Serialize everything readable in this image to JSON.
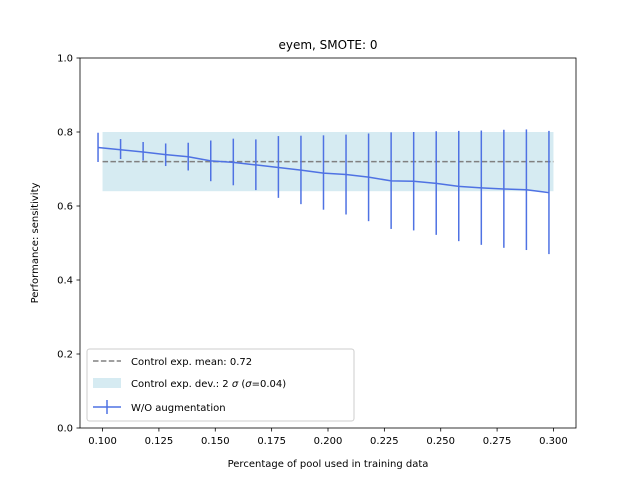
{
  "chart_data": {
    "type": "line",
    "title": "eyem, SMOTE: 0",
    "xlabel": "Percentage of pool used in training data",
    "ylabel": "Performance: sensitivity",
    "xlim": [
      0.09,
      0.31
    ],
    "ylim": [
      0.0,
      1.0
    ],
    "xticks": [
      0.1,
      0.125,
      0.15,
      0.175,
      0.2,
      0.225,
      0.25,
      0.275,
      0.3
    ],
    "xtick_labels": [
      "0.100",
      "0.125",
      "0.150",
      "0.175",
      "0.200",
      "0.225",
      "0.250",
      "0.275",
      "0.300"
    ],
    "yticks": [
      0.0,
      0.2,
      0.4,
      0.6,
      0.8,
      1.0
    ],
    "ytick_labels": [
      "0.0",
      "0.2",
      "0.4",
      "0.6",
      "0.8",
      "1.0"
    ],
    "grid": false,
    "legend_position": "lower-left",
    "control": {
      "mean": 0.72,
      "band": [
        0.64,
        0.8
      ],
      "x_range": [
        0.1,
        0.3
      ],
      "mean_label": "Control exp. mean: 0.72",
      "band_label": "Control exp. dev.: 2 σ (σ=0.04)",
      "band_label_parts": [
        "Control exp. dev.: 2 ",
        "σ",
        " (",
        "σ",
        "=0.04)"
      ]
    },
    "series": [
      {
        "name": "W/O augmentation",
        "color": "#4f72e3",
        "x": [
          0.098,
          0.108,
          0.118,
          0.128,
          0.138,
          0.148,
          0.158,
          0.168,
          0.178,
          0.188,
          0.198,
          0.208,
          0.218,
          0.228,
          0.238,
          0.248,
          0.258,
          0.268,
          0.278,
          0.288,
          0.298
        ],
        "y": [
          0.758,
          0.752,
          0.746,
          0.739,
          0.733,
          0.722,
          0.718,
          0.711,
          0.704,
          0.697,
          0.689,
          0.685,
          0.678,
          0.668,
          0.667,
          0.661,
          0.653,
          0.649,
          0.646,
          0.644,
          0.636
        ],
        "err_low": [
          0.719,
          0.727,
          0.723,
          0.708,
          0.696,
          0.667,
          0.656,
          0.643,
          0.622,
          0.605,
          0.59,
          0.577,
          0.559,
          0.538,
          0.534,
          0.522,
          0.505,
          0.495,
          0.487,
          0.481,
          0.47
        ],
        "err_high": [
          0.798,
          0.781,
          0.773,
          0.769,
          0.771,
          0.777,
          0.782,
          0.78,
          0.789,
          0.79,
          0.791,
          0.793,
          0.796,
          0.799,
          0.8,
          0.802,
          0.803,
          0.804,
          0.806,
          0.807,
          0.803
        ]
      }
    ],
    "colors": {
      "band_fill": "#add8e6",
      "mean_line": "#808080",
      "series": "#4f72e3"
    }
  }
}
